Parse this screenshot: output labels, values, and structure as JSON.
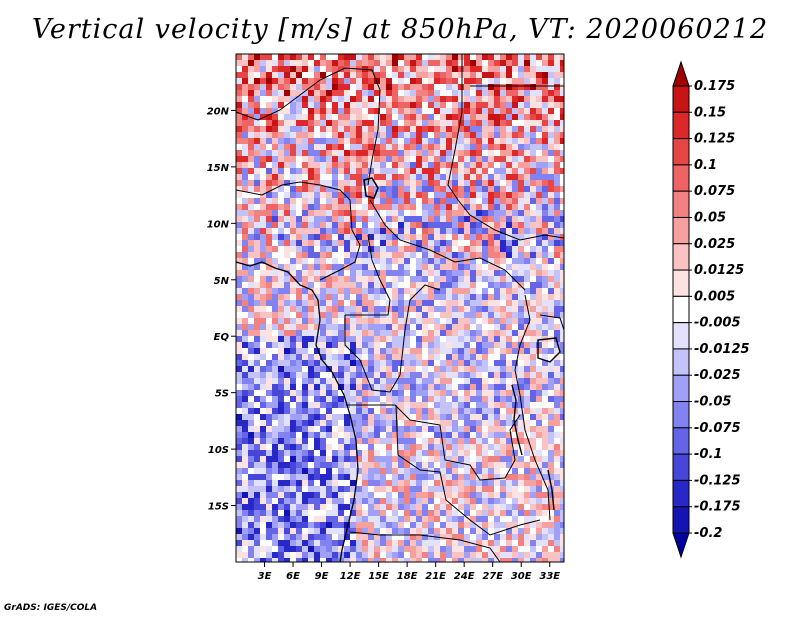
{
  "title": "Vertical velocity [m/s] at 850hPa, VT: 2020060212",
  "footer": "GrADS: IGES/COLA",
  "chart_data": {
    "type": "heatmap",
    "variable": "Vertical velocity",
    "units": "m/s",
    "level": "850hPa",
    "valid_time": "2020060212",
    "lon_range": [
      0,
      34.5
    ],
    "lat_range": [
      -20,
      25
    ],
    "x_ticks": [
      {
        "value": 3,
        "label": "3E"
      },
      {
        "value": 6,
        "label": "6E"
      },
      {
        "value": 9,
        "label": "9E"
      },
      {
        "value": 12,
        "label": "12E"
      },
      {
        "value": 15,
        "label": "15E"
      },
      {
        "value": 18,
        "label": "18E"
      },
      {
        "value": 21,
        "label": "21E"
      },
      {
        "value": 24,
        "label": "24E"
      },
      {
        "value": 27,
        "label": "27E"
      },
      {
        "value": 30,
        "label": "30E"
      },
      {
        "value": 33,
        "label": "33E"
      }
    ],
    "y_ticks": [
      {
        "value": 20,
        "label": "20N"
      },
      {
        "value": 15,
        "label": "15N"
      },
      {
        "value": 10,
        "label": "10N"
      },
      {
        "value": 5,
        "label": "5N"
      },
      {
        "value": 0,
        "label": "EQ"
      },
      {
        "value": -5,
        "label": "5S"
      },
      {
        "value": -10,
        "label": "10S"
      },
      {
        "value": -15,
        "label": "15S"
      }
    ],
    "colorbar": {
      "labels": [
        "0.175",
        "0.15",
        "0.125",
        "0.1",
        "0.075",
        "0.05",
        "0.025",
        "0.0125",
        "0.005",
        "-0.005",
        "-0.0125",
        "-0.025",
        "-0.05",
        "-0.075",
        "-0.1",
        "-0.125",
        "-0.175",
        "-0.2"
      ],
      "colors": [
        "#a00000",
        "#c81414",
        "#dc2828",
        "#e64646",
        "#ee6464",
        "#f28282",
        "#f6a0a0",
        "#fac3c3",
        "#fde2e2",
        "#ffffff",
        "#e2e2fd",
        "#c3c3fa",
        "#a0a0f6",
        "#8282f0",
        "#6464e6",
        "#4646d8",
        "#2828c8",
        "#1414b4",
        "#0000a0"
      ]
    }
  }
}
